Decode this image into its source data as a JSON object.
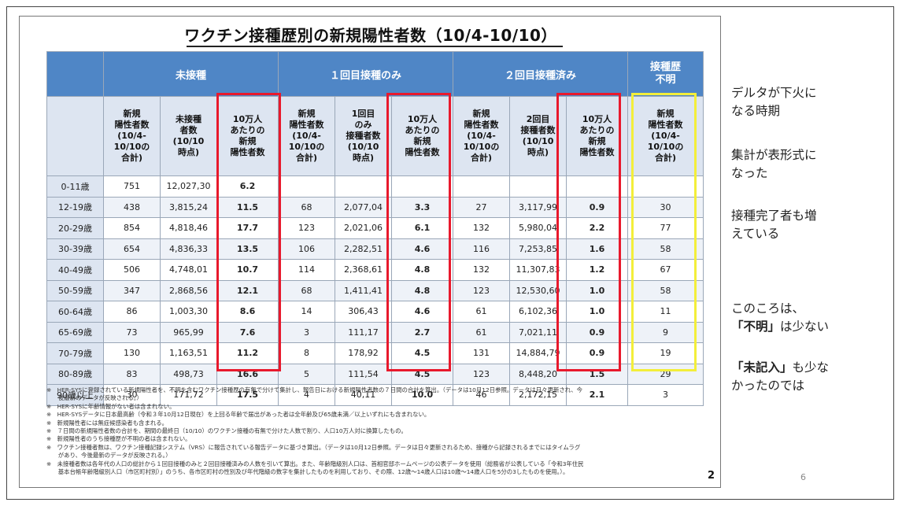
{
  "title": "ワクチン接種歴別の新規陽性者数（10/4-10/10）",
  "groups": {
    "g1": "未接種",
    "g2": "１回目接種のみ",
    "g3": "２回目接種済み",
    "g4": "接種歴\n不明"
  },
  "subheaders": [
    "新規\n陽性者数\n(10/4-\n10/10の\n合計)",
    "未接種\n者数\n(10/10\n時点)",
    "10万人\nあたりの\n新規\n陽性者数",
    "新規\n陽性者数\n(10/4-\n10/10の\n合計)",
    "1回目\nのみ\n接種者数\n(10/10\n時点)",
    "10万人\nあたりの\n新規\n陽性者数",
    "新規\n陽性者数\n(10/4-\n10/10の\n合計)",
    "2回目\n接種者数\n(10/10\n時点)",
    "10万人\nあたりの\n新規\n陽性者数",
    "新規\n陽性者数\n(10/4-\n10/10の\n合計)"
  ],
  "rows": [
    {
      "age": "0-11歳",
      "c": [
        "751",
        "12,027,30",
        "6.2",
        "",
        "",
        "",
        "",
        "",
        "",
        ""
      ]
    },
    {
      "age": "12-19歳",
      "c": [
        "438",
        "3,815,24",
        "11.5",
        "68",
        "2,077,04",
        "3.3",
        "27",
        "3,117,99",
        "0.9",
        "30"
      ]
    },
    {
      "age": "20-29歳",
      "c": [
        "854",
        "4,818,46",
        "17.7",
        "123",
        "2,021,06",
        "6.1",
        "132",
        "5,980,04",
        "2.2",
        "77"
      ]
    },
    {
      "age": "30-39歳",
      "c": [
        "654",
        "4,836,33",
        "13.5",
        "106",
        "2,282,51",
        "4.6",
        "116",
        "7,253,85",
        "1.6",
        "58"
      ]
    },
    {
      "age": "40-49歳",
      "c": [
        "506",
        "4,748,01",
        "10.7",
        "114",
        "2,368,61",
        "4.8",
        "132",
        "11,307,83",
        "1.2",
        "67"
      ]
    },
    {
      "age": "50-59歳",
      "c": [
        "347",
        "2,868,56",
        "12.1",
        "68",
        "1,411,41",
        "4.8",
        "123",
        "12,530,60",
        "1.0",
        "58"
      ]
    },
    {
      "age": "60-64歳",
      "c": [
        "86",
        "1,003,30",
        "8.6",
        "14",
        "306,43",
        "4.6",
        "61",
        "6,102,36",
        "1.0",
        "11"
      ]
    },
    {
      "age": "65-69歳",
      "c": [
        "73",
        "965,99",
        "7.6",
        "3",
        "111,17",
        "2.7",
        "61",
        "7,021,11",
        "0.9",
        "9"
      ]
    },
    {
      "age": "70-79歳",
      "c": [
        "130",
        "1,163,51",
        "11.2",
        "8",
        "178,92",
        "4.5",
        "131",
        "14,884,79",
        "0.9",
        "19"
      ]
    },
    {
      "age": "80-89歳",
      "c": [
        "83",
        "498,73",
        "16.6",
        "5",
        "111,54",
        "4.5",
        "123",
        "8,448,20",
        "1.5",
        "29"
      ]
    },
    {
      "age": "90歳以上",
      "c": [
        "30",
        "171,72",
        "17.5",
        "4",
        "40,11",
        "10.0",
        "46",
        "2,172,15",
        "2.1",
        "3"
      ]
    }
  ],
  "notes": [
    "※　HER-SYSに登録されている新規陽性者を、不明を含むワクチン接種歴の有無で分けて集計し、報告日における新規陽性者数の７日間の合計を算出。（データは10月12日参照。データは日々更新され、今",
    "　　後最新のデータが反映される。）",
    "※　HER-SYSに年齢情報がない者は含まれない。",
    "※　HER-SYSデータに日本最高齢（令和３年10月12日現在）を上回る年齢で届出があった者は全年齢及び65歳未満／以上いずれにも含まれない。",
    "※　新規陽性者には無症候感染者も含まれる。",
    "※　７日間の新規陽性者数の合計を、期間の最終日（10/10）のワクチン接種の有無で分けた人数で割り、人口10万人対に換算したもの。",
    "※　新規陽性者のうち接種歴が不明の者は含まれない。",
    "※　ワクチン接種者数は、ワクチン接種記録システム（VRS）に報告されている報告データに基づき算出。（データは10月12日参照。データは日々更新されるため、接種から記録されるまでにはタイムラグ",
    "　　があり、今後最新のデータが反映される。）",
    "※　未接種者数は各年代の人口の総計から１回目接種のみと２回目接種済みの人数を引いて算出。また、年齢階級別人口は、首相官邸ホームページの公表データを使用（総務省が公表している「令和3年住民",
    "　　基本台帳年齢階級別人口（市区町村別）」のうち、各市区町村の性別及び年代階級の数字を集計したものを利用しており、その際、12歳～14歳人口は10歳～14歳人口を5分の3したものを使用。）。"
  ],
  "panel_page_number": "2",
  "side": {
    "p1": "デルタが下火に\nなる時期",
    "p2": "集計が表形式に\nなった",
    "p3": "接種完了者も増\nえている",
    "p4a": "このころは、",
    "p4b_bold": "「不明」",
    "p4b_rest": "は少ない",
    "p5_bold": "「未記入」",
    "p5_rest": "も少な",
    "p5_line2": "かったのでは"
  },
  "slide_number": "6",
  "colors": {
    "header_blue": "#4f86c6",
    "subheader_bg": "#dde5f1",
    "highlight_red": "#e8192c",
    "highlight_yellow": "#f3ee3a"
  }
}
